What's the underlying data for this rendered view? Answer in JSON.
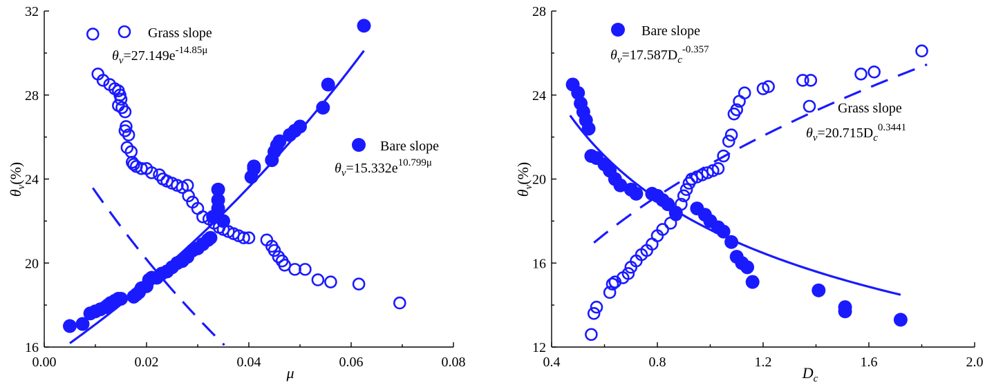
{
  "colors": {
    "series": "#1a1aff",
    "axis": "#000000",
    "background": "#ffffff"
  },
  "chart_data": [
    {
      "type": "scatter",
      "xlabel": "μ",
      "ylabel": "θv(%)",
      "xlim": [
        0.0,
        0.08
      ],
      "ylim": [
        16,
        32
      ],
      "xticks": [
        "0.00",
        "0.02",
        "0.04",
        "0.06",
        "0.08"
      ],
      "yticks": [
        "16",
        "20",
        "24",
        "28",
        "32"
      ],
      "grid": false,
      "series": [
        {
          "name": "Grass slope",
          "marker": "open-circle",
          "fit_style": "dashed",
          "equation": {
            "lhs": "θ",
            "sub": "v",
            "rhs": "=27.149e",
            "sup": "-14.85μ"
          },
          "fit": {
            "form": "exp",
            "a": 27.149,
            "b": -14.85,
            "x_range": [
              0.0095,
              0.07
            ]
          },
          "points": [
            [
              0.0095,
              30.9
            ],
            [
              0.0105,
              29.0
            ],
            [
              0.0115,
              28.7
            ],
            [
              0.0128,
              28.5
            ],
            [
              0.0138,
              28.3
            ],
            [
              0.0145,
              28.2
            ],
            [
              0.0148,
              28.0
            ],
            [
              0.015,
              27.8
            ],
            [
              0.0145,
              27.5
            ],
            [
              0.0152,
              27.4
            ],
            [
              0.0158,
              27.2
            ],
            [
              0.016,
              26.5
            ],
            [
              0.0158,
              26.3
            ],
            [
              0.0165,
              26.1
            ],
            [
              0.0162,
              25.5
            ],
            [
              0.017,
              25.3
            ],
            [
              0.0172,
              24.8
            ],
            [
              0.0175,
              24.7
            ],
            [
              0.018,
              24.6
            ],
            [
              0.019,
              24.5
            ],
            [
              0.02,
              24.5
            ],
            [
              0.021,
              24.3
            ],
            [
              0.0225,
              24.2
            ],
            [
              0.0232,
              24.0
            ],
            [
              0.024,
              23.9
            ],
            [
              0.025,
              23.8
            ],
            [
              0.026,
              23.7
            ],
            [
              0.027,
              23.6
            ],
            [
              0.028,
              23.7
            ],
            [
              0.0282,
              23.2
            ],
            [
              0.029,
              22.9
            ],
            [
              0.03,
              22.6
            ],
            [
              0.031,
              22.2
            ],
            [
              0.0322,
              22.1
            ],
            [
              0.0332,
              21.9
            ],
            [
              0.0342,
              21.7
            ],
            [
              0.035,
              21.6
            ],
            [
              0.036,
              21.5
            ],
            [
              0.037,
              21.4
            ],
            [
              0.038,
              21.3
            ],
            [
              0.039,
              21.2
            ],
            [
              0.04,
              21.2
            ],
            [
              0.0435,
              21.1
            ],
            [
              0.0445,
              20.8
            ],
            [
              0.045,
              20.6
            ],
            [
              0.0458,
              20.3
            ],
            [
              0.0465,
              20.1
            ],
            [
              0.047,
              19.9
            ],
            [
              0.049,
              19.7
            ],
            [
              0.051,
              19.7
            ],
            [
              0.0535,
              19.2
            ],
            [
              0.056,
              19.1
            ],
            [
              0.0615,
              19.0
            ],
            [
              0.0695,
              18.1
            ]
          ]
        },
        {
          "name": "Bare slope",
          "marker": "filled-circle",
          "fit_style": "solid",
          "equation": {
            "lhs": "θ",
            "sub": "v",
            "rhs": "=15.332e",
            "sup": "10.799μ"
          },
          "fit": {
            "form": "exp",
            "a": 15.332,
            "b": 10.799,
            "x_range": [
              0.005,
              0.0625
            ]
          },
          "points": [
            [
              0.005,
              17.0
            ],
            [
              0.0075,
              17.1
            ],
            [
              0.009,
              17.6
            ],
            [
              0.01,
              17.7
            ],
            [
              0.011,
              17.8
            ],
            [
              0.012,
              17.9
            ],
            [
              0.0125,
              18.0
            ],
            [
              0.013,
              18.1
            ],
            [
              0.0138,
              18.2
            ],
            [
              0.0145,
              18.3
            ],
            [
              0.015,
              18.3
            ],
            [
              0.0175,
              18.4
            ],
            [
              0.018,
              18.5
            ],
            [
              0.0185,
              18.6
            ],
            [
              0.019,
              18.8
            ],
            [
              0.02,
              18.9
            ],
            [
              0.0205,
              19.2
            ],
            [
              0.021,
              19.3
            ],
            [
              0.022,
              19.3
            ],
            [
              0.023,
              19.5
            ],
            [
              0.024,
              19.6
            ],
            [
              0.025,
              19.8
            ],
            [
              0.026,
              20.0
            ],
            [
              0.027,
              20.1
            ],
            [
              0.028,
              20.3
            ],
            [
              0.029,
              20.6
            ],
            [
              0.03,
              20.7
            ],
            [
              0.031,
              20.9
            ],
            [
              0.032,
              21.1
            ],
            [
              0.0325,
              21.2
            ],
            [
              0.033,
              22.2
            ],
            [
              0.034,
              22.6
            ],
            [
              0.034,
              23.0
            ],
            [
              0.034,
              23.5
            ],
            [
              0.035,
              22.0
            ],
            [
              0.0405,
              24.1
            ],
            [
              0.041,
              24.5
            ],
            [
              0.041,
              24.6
            ],
            [
              0.0445,
              24.9
            ],
            [
              0.045,
              25.3
            ],
            [
              0.0455,
              25.6
            ],
            [
              0.046,
              25.8
            ],
            [
              0.048,
              26.1
            ],
            [
              0.049,
              26.3
            ],
            [
              0.05,
              26.5
            ],
            [
              0.0545,
              27.4
            ],
            [
              0.0555,
              28.5
            ],
            [
              0.0625,
              31.3
            ]
          ]
        }
      ]
    },
    {
      "type": "scatter",
      "xlabel": "Dc",
      "ylabel": "θv(%)",
      "xlim": [
        0.4,
        2.0
      ],
      "ylim": [
        12,
        28
      ],
      "xticks": [
        "0.4",
        "0.8",
        "1.2",
        "1.6",
        "2.0"
      ],
      "yticks": [
        "12",
        "16",
        "20",
        "24",
        "28"
      ],
      "grid": false,
      "series": [
        {
          "name": "Bare slope",
          "marker": "filled-circle",
          "fit_style": "solid",
          "equation": {
            "lhs": "θ",
            "sub": "v",
            "rhs": "=17.587D",
            "rsub": "c",
            "sup": "-0.357"
          },
          "fit": {
            "form": "power",
            "a": 17.587,
            "b": -0.357,
            "x_range": [
              0.47,
              1.72
            ]
          },
          "points": [
            [
              0.48,
              24.5
            ],
            [
              0.5,
              24.1
            ],
            [
              0.51,
              23.6
            ],
            [
              0.52,
              23.2
            ],
            [
              0.53,
              22.8
            ],
            [
              0.54,
              22.4
            ],
            [
              0.55,
              21.1
            ],
            [
              0.57,
              21.0
            ],
            [
              0.6,
              20.7
            ],
            [
              0.62,
              20.4
            ],
            [
              0.64,
              20.0
            ],
            [
              0.66,
              19.7
            ],
            [
              0.7,
              19.5
            ],
            [
              0.72,
              19.3
            ],
            [
              0.78,
              19.3
            ],
            [
              0.8,
              19.2
            ],
            [
              0.82,
              19.0
            ],
            [
              0.84,
              18.8
            ],
            [
              0.87,
              18.4
            ],
            [
              0.95,
              18.6
            ],
            [
              0.98,
              18.3
            ],
            [
              1.0,
              18.0
            ],
            [
              1.03,
              17.7
            ],
            [
              1.05,
              17.5
            ],
            [
              1.08,
              17.0
            ],
            [
              1.1,
              16.3
            ],
            [
              1.12,
              16.0
            ],
            [
              1.14,
              15.8
            ],
            [
              1.16,
              15.1
            ],
            [
              1.41,
              14.7
            ],
            [
              1.51,
              13.9
            ],
            [
              1.51,
              13.7
            ],
            [
              1.72,
              13.3
            ]
          ]
        },
        {
          "name": "Grass slope",
          "marker": "open-circle",
          "fit_style": "dashed",
          "equation": {
            "lhs": "θ",
            "sub": "v",
            "rhs": "=20.715D",
            "rsub": "c",
            "sup": "0.3441"
          },
          "fit": {
            "form": "power",
            "a": 20.715,
            "b": 0.3441,
            "x_range": [
              0.56,
              1.82
            ]
          },
          "points": [
            [
              0.55,
              12.6
            ],
            [
              0.56,
              13.6
            ],
            [
              0.57,
              13.9
            ],
            [
              0.62,
              14.6
            ],
            [
              0.63,
              15.0
            ],
            [
              0.64,
              15.1
            ],
            [
              0.67,
              15.3
            ],
            [
              0.69,
              15.5
            ],
            [
              0.7,
              15.8
            ],
            [
              0.72,
              16.1
            ],
            [
              0.74,
              16.4
            ],
            [
              0.76,
              16.6
            ],
            [
              0.78,
              16.9
            ],
            [
              0.8,
              17.3
            ],
            [
              0.82,
              17.6
            ],
            [
              0.85,
              17.9
            ],
            [
              0.87,
              18.3
            ],
            [
              0.89,
              18.8
            ],
            [
              0.9,
              19.2
            ],
            [
              0.91,
              19.5
            ],
            [
              0.92,
              19.8
            ],
            [
              0.93,
              20.0
            ],
            [
              0.95,
              20.1
            ],
            [
              0.97,
              20.2
            ],
            [
              0.99,
              20.3
            ],
            [
              1.01,
              20.4
            ],
            [
              1.03,
              20.5
            ],
            [
              1.05,
              21.1
            ],
            [
              1.07,
              21.8
            ],
            [
              1.08,
              22.1
            ],
            [
              1.09,
              23.1
            ],
            [
              1.1,
              23.3
            ],
            [
              1.11,
              23.7
            ],
            [
              1.13,
              24.1
            ],
            [
              1.2,
              24.3
            ],
            [
              1.22,
              24.4
            ],
            [
              1.35,
              24.7
            ],
            [
              1.38,
              24.7
            ],
            [
              1.57,
              25.0
            ],
            [
              1.62,
              25.1
            ],
            [
              1.8,
              26.1
            ]
          ]
        }
      ]
    }
  ]
}
